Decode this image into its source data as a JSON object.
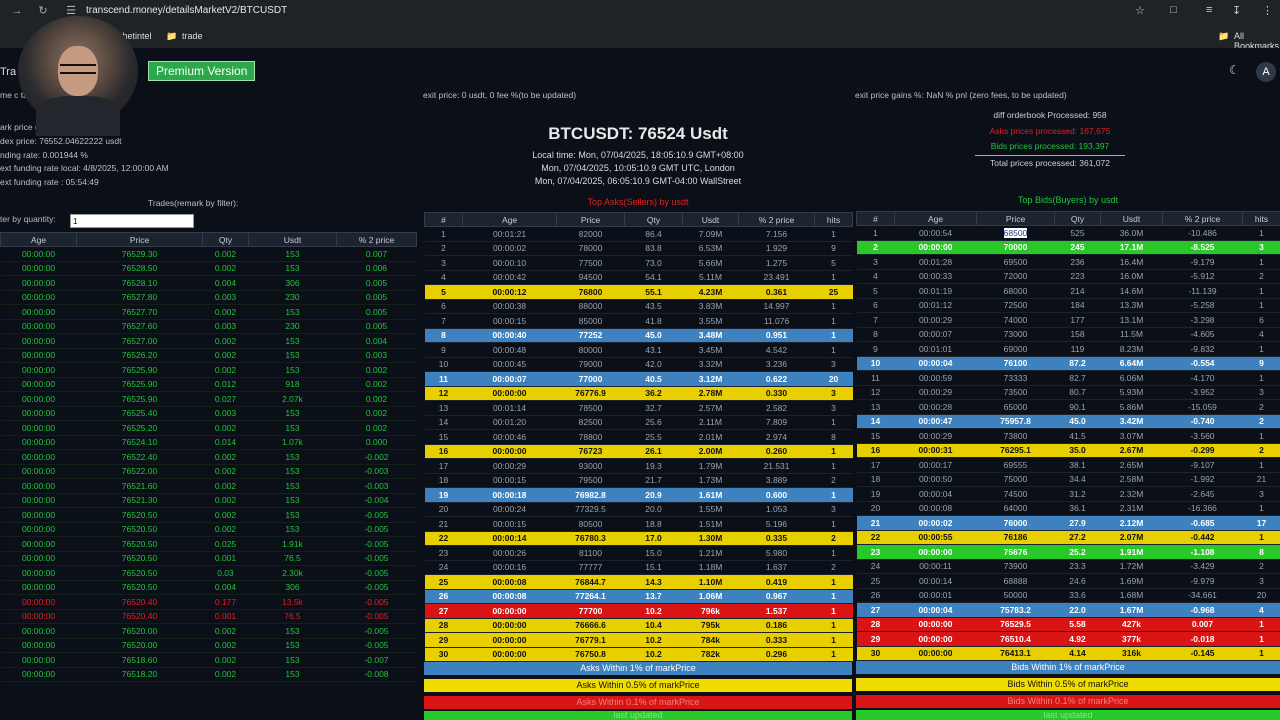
{
  "browser": {
    "url": "transcend.money/detailsMarketV2/BTCUSDT",
    "bookmarks": [
      "thetintel",
      "trade"
    ],
    "all_bookmarks": "All Bookmarks"
  },
  "header": {
    "premium_label": "Premium Version",
    "app_partial": "Tra",
    "avatar_letter": "A"
  },
  "left_info": {
    "line1": "me c                   ta Usdt",
    "line2": "ark price (                  24.00000000 usdt",
    "line3": "dex price: 76552.04622222 usdt",
    "line4": "nding rate: 0.001944 %",
    "line5": "ext funding rate local: 4/8/2025, 12:00:00 AM",
    "line6": "ext funding rate : 05:54:49",
    "trades_caption": "Trades(remark by filter):",
    "filter_label": "ter by quantity:",
    "filter_value": "1"
  },
  "exit_price": "exit price: 0 usdt, 0 fee %(to be updated)",
  "exit_gains": "exit price gains %: NaN % pnl (zero fees, to be updated)",
  "ticker": {
    "title": "BTCUSDT: 76524 Usdt",
    "local_time": "Local time: Mon, 07/04/2025, 18:05:10.9 GMT+08:00",
    "london_time": "Mon, 07/04/2025, 10:05:10.9 GMT UTC, London",
    "wallstreet_time": "Mon, 07/04/2025, 06:05:10.9 GMT-04:00 WallStreet"
  },
  "stats": {
    "diff": "diff orderbook Processed: 958",
    "asks": "Asks prices processed: 167,675",
    "bids": "Bids prices processed: 193,397",
    "total": "Total prices processed: 361,072"
  },
  "trades": {
    "headers": [
      "Age",
      "Price",
      "Qty",
      "Usdt",
      "% 2 price"
    ],
    "rows": [
      [
        "00:00:00",
        "76529.30",
        "0.002",
        "153",
        "0.007",
        ""
      ],
      [
        "00:00:00",
        "76528.50",
        "0.002",
        "153",
        "0.006",
        ""
      ],
      [
        "00:00:00",
        "76528.10",
        "0.004",
        "306",
        "0.005",
        ""
      ],
      [
        "00:00:00",
        "76527.80",
        "0.003",
        "230",
        "0.005",
        ""
      ],
      [
        "00:00:00",
        "76527.70",
        "0.002",
        "153",
        "0.005",
        ""
      ],
      [
        "00:00:00",
        "76527.60",
        "0.003",
        "230",
        "0.005",
        ""
      ],
      [
        "00:00:00",
        "76527.00",
        "0.002",
        "153",
        "0.004",
        ""
      ],
      [
        "00:00:00",
        "76526.20",
        "0.002",
        "153",
        "0.003",
        ""
      ],
      [
        "00:00:00",
        "76525.90",
        "0.002",
        "153",
        "0.002",
        ""
      ],
      [
        "00:00:00",
        "76525.90",
        "0.012",
        "918",
        "0.002",
        ""
      ],
      [
        "00:00:00",
        "76525.90",
        "0.027",
        "2.07k",
        "0.002",
        ""
      ],
      [
        "00:00:00",
        "76525.40",
        "0.003",
        "153",
        "0.002",
        ""
      ],
      [
        "00:00:00",
        "76525.20",
        "0.002",
        "153",
        "0.002",
        ""
      ],
      [
        "00:00:00",
        "76524.10",
        "0.014",
        "1.07k",
        "0.000",
        ""
      ],
      [
        "00:00:00",
        "76522.40",
        "0.002",
        "153",
        "-0.002",
        ""
      ],
      [
        "00:00:00",
        "76522.00",
        "0.002",
        "153",
        "-0.003",
        ""
      ],
      [
        "00:00:00",
        "76521.60",
        "0.002",
        "153",
        "-0.003",
        ""
      ],
      [
        "00:00:00",
        "76521.30",
        "0.002",
        "153",
        "-0.004",
        ""
      ],
      [
        "00:00:00",
        "76520.50",
        "0.002",
        "153",
        "-0.005",
        ""
      ],
      [
        "00:00:00",
        "76520.50",
        "0.002",
        "153",
        "-0.005",
        ""
      ],
      [
        "00:00:00",
        "76520.50",
        "0.025",
        "1.91k",
        "-0.005",
        ""
      ],
      [
        "00:00:00",
        "76520.50",
        "0.001",
        "76.5",
        "-0.005",
        ""
      ],
      [
        "00:00:00",
        "76520.50",
        "0.03",
        "2.30k",
        "-0.005",
        ""
      ],
      [
        "00:00:00",
        "76520.50",
        "0.004",
        "306",
        "-0.005",
        ""
      ],
      [
        "00:00:00",
        "76520.40",
        "0.177",
        "13.5k",
        "-0.005",
        "red"
      ],
      [
        "00:00:00",
        "76520.40",
        "0.001",
        "76.5",
        "-0.005",
        "red"
      ],
      [
        "00:00:00",
        "76520.00",
        "0.002",
        "153",
        "-0.005",
        ""
      ],
      [
        "00:00:00",
        "76520.00",
        "0.002",
        "153",
        "-0.005",
        ""
      ],
      [
        "00:00:00",
        "76518.60",
        "0.002",
        "153",
        "-0.007",
        ""
      ],
      [
        "00:00:00",
        "76518.20",
        "0.002",
        "153",
        "-0.008",
        ""
      ]
    ]
  },
  "asks": {
    "caption": "Top Asks(Sellers) by usdt",
    "headers": [
      "#",
      "Age",
      "Price",
      "Qty",
      "Usdt",
      "% 2 price",
      "hits"
    ],
    "rows": [
      [
        "1",
        "00:01:21",
        "82000",
        "86.4",
        "7.09M",
        "7.156",
        "1",
        "none"
      ],
      [
        "2",
        "00:00:02",
        "78000",
        "83.8",
        "6.53M",
        "1.929",
        "9",
        "none"
      ],
      [
        "3",
        "00:00:10",
        "77500",
        "73.0",
        "5.66M",
        "1.275",
        "5",
        "none"
      ],
      [
        "4",
        "00:00:42",
        "94500",
        "54.1",
        "5.11M",
        "23.491",
        "1",
        "none"
      ],
      [
        "5",
        "00:00:12",
        "76800",
        "55.1",
        "4.23M",
        "0.361",
        "25",
        "yellow"
      ],
      [
        "6",
        "00:00:38",
        "88000",
        "43.5",
        "3.83M",
        "14.997",
        "1",
        "none"
      ],
      [
        "7",
        "00:00:15",
        "85000",
        "41.8",
        "3.55M",
        "11.076",
        "1",
        "none"
      ],
      [
        "8",
        "00:00:40",
        "77252",
        "45.0",
        "3.48M",
        "0.951",
        "1",
        "blue"
      ],
      [
        "9",
        "00:00:48",
        "80000",
        "43.1",
        "3.45M",
        "4.542",
        "1",
        "none"
      ],
      [
        "10",
        "00:00:45",
        "79000",
        "42.0",
        "3.32M",
        "3.236",
        "3",
        "none"
      ],
      [
        "11",
        "00:00:07",
        "77000",
        "40.5",
        "3.12M",
        "0.622",
        "20",
        "blue"
      ],
      [
        "12",
        "00:00:00",
        "76776.9",
        "36.2",
        "2.78M",
        "0.330",
        "3",
        "yellow"
      ],
      [
        "13",
        "00:01:14",
        "78500",
        "32.7",
        "2.57M",
        "2.582",
        "3",
        "none"
      ],
      [
        "14",
        "00:01:20",
        "82500",
        "25.6",
        "2.11M",
        "7.809",
        "1",
        "none"
      ],
      [
        "15",
        "00:00:46",
        "78800",
        "25.5",
        "2.01M",
        "2.974",
        "8",
        "none"
      ],
      [
        "16",
        "00:00:00",
        "76723",
        "26.1",
        "2.00M",
        "0.260",
        "1",
        "yellow"
      ],
      [
        "17",
        "00:00:29",
        "93000",
        "19.3",
        "1.79M",
        "21.531",
        "1",
        "none"
      ],
      [
        "18",
        "00:00:15",
        "79500",
        "21.7",
        "1.73M",
        "3.889",
        "2",
        "none"
      ],
      [
        "19",
        "00:00:18",
        "76982.8",
        "20.9",
        "1.61M",
        "0.600",
        "1",
        "blue"
      ],
      [
        "20",
        "00:00:24",
        "77329.5",
        "20.0",
        "1.55M",
        "1.053",
        "3",
        "none"
      ],
      [
        "21",
        "00:00:15",
        "80500",
        "18.8",
        "1.51M",
        "5.196",
        "1",
        "none"
      ],
      [
        "22",
        "00:00:14",
        "76780.3",
        "17.0",
        "1.30M",
        "0.335",
        "2",
        "yellow"
      ],
      [
        "23",
        "00:00:26",
        "81100",
        "15.0",
        "1.21M",
        "5.980",
        "1",
        "none"
      ],
      [
        "24",
        "00:00:16",
        "77777",
        "15.1",
        "1.18M",
        "1.637",
        "2",
        "none"
      ],
      [
        "25",
        "00:00:08",
        "76844.7",
        "14.3",
        "1.10M",
        "0.419",
        "1",
        "yellow"
      ],
      [
        "26",
        "00:00:08",
        "77264.1",
        "13.7",
        "1.06M",
        "0.967",
        "1",
        "blue"
      ],
      [
        "27",
        "00:00:00",
        "77700",
        "10.2",
        "796k",
        "1.537",
        "1",
        "red"
      ],
      [
        "28",
        "00:00:00",
        "76666.6",
        "10.4",
        "795k",
        "0.186",
        "1",
        "yellow"
      ],
      [
        "29",
        "00:00:00",
        "76779.1",
        "10.2",
        "784k",
        "0.333",
        "1",
        "yellow"
      ],
      [
        "30",
        "00:00:00",
        "76750.8",
        "10.2",
        "782k",
        "0.296",
        "1",
        "yellow"
      ]
    ],
    "legend": [
      "Asks Within 1% of markPrice",
      "Asks Within 0.5% of markPrice",
      "Asks Within 0.1% of markPrice",
      "last updated"
    ]
  },
  "bids": {
    "caption": "Top Bids(Buyers) by usdt",
    "headers": [
      "#",
      "Age",
      "Price",
      "Qty",
      "Usdt",
      "% 2 price",
      "hits"
    ],
    "rows": [
      [
        "1",
        "00:00:54",
        "68500",
        "525",
        "36.0M",
        "-10.486",
        "1",
        "none"
      ],
      [
        "2",
        "00:00:00",
        "70000",
        "245",
        "17.1M",
        "-8.525",
        "3",
        "green"
      ],
      [
        "3",
        "00:01:28",
        "69500",
        "236",
        "16.4M",
        "-9.179",
        "1",
        "none"
      ],
      [
        "4",
        "00:00:33",
        "72000",
        "223",
        "16.0M",
        "-5.912",
        "2",
        "none"
      ],
      [
        "5",
        "00:01:19",
        "68000",
        "214",
        "14.6M",
        "-11.139",
        "1",
        "none"
      ],
      [
        "6",
        "00:01:12",
        "72500",
        "184",
        "13.3M",
        "-5.258",
        "1",
        "none"
      ],
      [
        "7",
        "00:00:29",
        "74000",
        "177",
        "13.1M",
        "-3.298",
        "6",
        "none"
      ],
      [
        "8",
        "00:00:07",
        "73000",
        "158",
        "11.5M",
        "-4.605",
        "4",
        "none"
      ],
      [
        "9",
        "00:01:01",
        "69000",
        "119",
        "8.23M",
        "-9.832",
        "1",
        "none"
      ],
      [
        "10",
        "00:00:04",
        "76100",
        "87.2",
        "6.64M",
        "-0.554",
        "9",
        "blue"
      ],
      [
        "11",
        "00:00:59",
        "73333",
        "82.7",
        "6.06M",
        "-4.170",
        "1",
        "none"
      ],
      [
        "12",
        "00:00:29",
        "73500",
        "80.7",
        "5.93M",
        "-3.952",
        "3",
        "none"
      ],
      [
        "13",
        "00:00:28",
        "65000",
        "90.1",
        "5.86M",
        "-15.059",
        "2",
        "none"
      ],
      [
        "14",
        "00:00:47",
        "75957.8",
        "45.0",
        "3.42M",
        "-0.740",
        "2",
        "blue"
      ],
      [
        "15",
        "00:00:29",
        "73800",
        "41.5",
        "3.07M",
        "-3.560",
        "1",
        "none"
      ],
      [
        "16",
        "00:00:31",
        "76295.1",
        "35.0",
        "2.67M",
        "-0.299",
        "2",
        "yellow"
      ],
      [
        "17",
        "00:00:17",
        "69555",
        "38.1",
        "2.65M",
        "-9.107",
        "1",
        "none"
      ],
      [
        "18",
        "00:00:50",
        "75000",
        "34.4",
        "2.58M",
        "-1.992",
        "21",
        "none"
      ],
      [
        "19",
        "00:00:04",
        "74500",
        "31.2",
        "2.32M",
        "-2.645",
        "3",
        "none"
      ],
      [
        "20",
        "00:00:08",
        "64000",
        "36.1",
        "2.31M",
        "-16.366",
        "1",
        "none"
      ],
      [
        "21",
        "00:00:02",
        "76000",
        "27.9",
        "2.12M",
        "-0.685",
        "17",
        "blue"
      ],
      [
        "22",
        "00:00:55",
        "76186",
        "27.2",
        "2.07M",
        "-0.442",
        "1",
        "yellow"
      ],
      [
        "23",
        "00:00:00",
        "75676",
        "25.2",
        "1.91M",
        "-1.108",
        "8",
        "green"
      ],
      [
        "24",
        "00:00:11",
        "73900",
        "23.3",
        "1.72M",
        "-3.429",
        "2",
        "none"
      ],
      [
        "25",
        "00:00:14",
        "68888",
        "24.6",
        "1.69M",
        "-9.979",
        "3",
        "none"
      ],
      [
        "26",
        "00:00:01",
        "50000",
        "33.6",
        "1.68M",
        "-34.661",
        "20",
        "none"
      ],
      [
        "27",
        "00:00:04",
        "75783.2",
        "22.0",
        "1.67M",
        "-0.968",
        "4",
        "blue"
      ],
      [
        "28",
        "00:00:00",
        "76529.5",
        "5.58",
        "427k",
        "0.007",
        "1",
        "red"
      ],
      [
        "29",
        "00:00:00",
        "76510.4",
        "4.92",
        "377k",
        "-0.018",
        "1",
        "red"
      ],
      [
        "30",
        "00:00:00",
        "76413.1",
        "4.14",
        "316k",
        "-0.145",
        "1",
        "yellow"
      ]
    ],
    "legend": [
      "Bids Within 1% of markPrice",
      "Bids Within 0.5% of markPrice",
      "Bids Within 0.1% of markPrice",
      "last updated"
    ]
  },
  "colors": {
    "yellow": "#e8cf00",
    "blue": "#3d82be",
    "red": "#d81414",
    "green": "#27c827",
    "trade_green": "#21c43a"
  }
}
